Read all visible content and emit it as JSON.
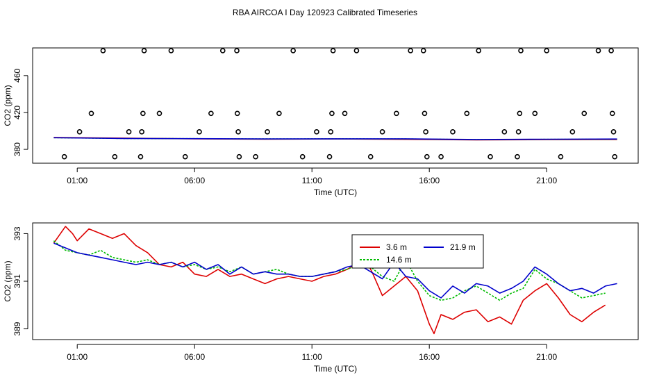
{
  "title": "RBA AIRCOA I  Day 120923  Calibrated Timeseries",
  "colors": {
    "s1": "#dd0000",
    "s2": "#00bb00",
    "s3": "#0000cc",
    "axis": "#000000"
  },
  "chart_data": [
    {
      "type": "scatter",
      "panel": "top",
      "xlabel": "Time (UTC)",
      "ylabel": "CO2 (ppm)",
      "xlim": [
        -0.9,
        24.9
      ],
      "ylim": [
        365,
        490
      ],
      "xticks": [
        1,
        6,
        11,
        16,
        21
      ],
      "xtick_labels": [
        "01:00",
        "06:00",
        "11:00",
        "16:00",
        "21:00"
      ],
      "yticks": [
        380,
        420,
        460
      ],
      "ytick_labels": [
        "380",
        "420",
        "460"
      ],
      "points_x": [
        0.45,
        1.1,
        1.6,
        2.1,
        2.6,
        3.2,
        3.7,
        3.75,
        3.8,
        3.85,
        4.5,
        5.0,
        5.6,
        6.2,
        6.7,
        7.2,
        7.8,
        7.82,
        7.86,
        7.9,
        8.6,
        9.1,
        9.6,
        10.2,
        10.6,
        11.2,
        11.75,
        11.8,
        11.85,
        11.9,
        12.4,
        12.9,
        13.5,
        14.0,
        14.6,
        15.2,
        15.75,
        15.8,
        15.85,
        15.9,
        16.5,
        17.0,
        17.6,
        18.1,
        18.6,
        19.2,
        19.75,
        19.8,
        19.85,
        19.9,
        20.5,
        21.0,
        21.6,
        22.1,
        22.6,
        23.2,
        23.75,
        23.8,
        23.85,
        23.9
      ],
      "points_y": [
        372,
        399,
        419,
        487,
        372,
        399,
        372,
        399,
        419,
        487,
        419,
        487,
        372,
        399,
        419,
        487,
        487,
        419,
        399,
        372,
        372,
        399,
        419,
        487,
        372,
        399,
        372,
        399,
        419,
        487,
        419,
        487,
        372,
        399,
        419,
        487,
        487,
        419,
        399,
        372,
        372,
        399,
        419,
        487,
        372,
        399,
        372,
        399,
        419,
        487,
        419,
        487,
        372,
        399,
        419,
        487,
        487,
        419,
        399,
        372
      ],
      "series": [
        {
          "name": "3.6 m",
          "x": [
            0,
            3,
            6,
            9,
            12,
            15,
            18,
            21,
            24
          ],
          "values": [
            392.9,
            392.2,
            391.4,
            391.0,
            391.3,
            390.8,
            390.2,
            390.5,
            390.6
          ]
        },
        {
          "name": "14.6 m",
          "x": [
            0,
            3,
            6,
            9,
            12,
            15,
            18,
            21,
            24
          ],
          "values": [
            392.6,
            391.8,
            391.6,
            391.3,
            391.4,
            391.3,
            390.5,
            390.8,
            391.0
          ]
        },
        {
          "name": "21.9 m",
          "x": [
            0,
            3,
            6,
            9,
            12,
            15,
            18,
            21,
            24
          ],
          "values": [
            392.6,
            391.8,
            391.6,
            391.3,
            391.4,
            391.4,
            390.7,
            391.0,
            391.2
          ]
        }
      ]
    },
    {
      "type": "line",
      "panel": "bottom",
      "xlabel": "Time (UTC)",
      "ylabel": "CO2 (ppm)",
      "xlim": [
        -0.9,
        24.9
      ],
      "ylim": [
        388.55,
        393.45
      ],
      "xticks": [
        1,
        6,
        11,
        16,
        21
      ],
      "xtick_labels": [
        "01:00",
        "06:00",
        "11:00",
        "16:00",
        "21:00"
      ],
      "yticks": [
        389,
        391,
        393
      ],
      "ytick_labels": [
        "389",
        "391",
        "393"
      ],
      "legend": {
        "position": "top-center",
        "entries": [
          "3.6 m",
          "21.9 m",
          "14.6 m"
        ]
      },
      "series": [
        {
          "name": "3.6 m",
          "x": [
            0,
            0.5,
            0.8,
            1.0,
            1.5,
            2.0,
            2.5,
            3.0,
            3.5,
            4.0,
            4.5,
            5.0,
            5.5,
            6.0,
            6.5,
            7.0,
            7.5,
            8.0,
            8.5,
            9.0,
            9.5,
            10.0,
            10.5,
            11.0,
            11.5,
            12.0,
            12.5,
            13.0,
            13.3,
            13.6,
            14.0,
            14.5,
            15.0,
            15.5,
            16.0,
            16.2,
            16.5,
            17.0,
            17.5,
            18.0,
            18.5,
            19.0,
            19.5,
            20.0,
            20.5,
            21.0,
            21.5,
            22.0,
            22.5,
            23.0,
            23.5
          ],
          "values": [
            392.6,
            393.3,
            393.0,
            392.7,
            393.2,
            393.0,
            392.8,
            393.0,
            392.5,
            392.2,
            391.7,
            391.6,
            391.8,
            391.3,
            391.2,
            391.5,
            391.2,
            391.3,
            391.1,
            390.9,
            391.1,
            391.2,
            391.1,
            391.0,
            391.2,
            391.3,
            391.5,
            391.8,
            391.9,
            391.3,
            390.4,
            390.8,
            391.2,
            390.6,
            389.2,
            388.8,
            389.6,
            389.4,
            389.7,
            389.8,
            389.3,
            389.5,
            389.2,
            390.2,
            390.6,
            390.9,
            390.3,
            389.6,
            389.3,
            389.7,
            390.0
          ]
        },
        {
          "name": "14.6 m",
          "x": [
            0,
            0.5,
            1.0,
            1.5,
            2.0,
            2.5,
            3.0,
            3.5,
            4.0,
            4.5,
            5.0,
            5.5,
            6.0,
            6.5,
            7.0,
            7.5,
            8.0,
            8.5,
            9.0,
            9.5,
            10.0,
            10.5,
            11.0,
            11.5,
            12.0,
            12.5,
            13.0,
            13.5,
            14.0,
            14.5,
            15.0,
            15.5,
            16.0,
            16.5,
            17.0,
            17.5,
            18.0,
            18.5,
            19.0,
            19.5,
            20.0,
            20.5,
            21.0,
            21.5,
            22.0,
            22.5,
            23.0,
            23.5
          ],
          "values": [
            392.7,
            392.3,
            392.2,
            392.1,
            392.3,
            392.0,
            391.9,
            391.8,
            391.9,
            391.7,
            391.8,
            391.6,
            391.7,
            391.5,
            391.6,
            391.4,
            391.6,
            391.3,
            391.4,
            391.5,
            391.3,
            391.2,
            391.2,
            391.3,
            391.4,
            391.5,
            391.7,
            391.6,
            391.2,
            391.0,
            391.9,
            391.0,
            390.4,
            390.2,
            390.3,
            390.6,
            390.8,
            390.5,
            390.2,
            390.5,
            390.7,
            391.5,
            391.1,
            390.9,
            390.6,
            390.3,
            390.4,
            390.5
          ]
        },
        {
          "name": "21.9 m",
          "x": [
            0,
            0.5,
            1.0,
            1.5,
            2.0,
            2.5,
            3.0,
            3.5,
            4.0,
            4.5,
            5.0,
            5.5,
            6.0,
            6.5,
            7.0,
            7.5,
            8.0,
            8.5,
            9.0,
            9.5,
            10.0,
            10.5,
            11.0,
            11.5,
            12.0,
            12.5,
            13.0,
            13.5,
            14.0,
            14.5,
            15.0,
            15.5,
            16.0,
            16.5,
            17.0,
            17.5,
            18.0,
            18.5,
            19.0,
            19.5,
            20.0,
            20.5,
            21.0,
            21.5,
            22.0,
            22.5,
            23.0,
            23.5,
            24.0
          ],
          "values": [
            392.6,
            392.4,
            392.2,
            392.1,
            392.0,
            391.9,
            391.8,
            391.7,
            391.8,
            391.7,
            391.8,
            391.6,
            391.8,
            391.5,
            391.7,
            391.3,
            391.6,
            391.3,
            391.4,
            391.3,
            391.3,
            391.2,
            391.2,
            391.3,
            391.4,
            391.6,
            391.7,
            391.4,
            391.1,
            391.8,
            391.2,
            391.1,
            390.6,
            390.3,
            390.8,
            390.5,
            390.9,
            390.8,
            390.5,
            390.7,
            391.0,
            391.6,
            391.3,
            390.9,
            390.6,
            390.7,
            390.5,
            390.8,
            390.9
          ]
        }
      ]
    }
  ]
}
